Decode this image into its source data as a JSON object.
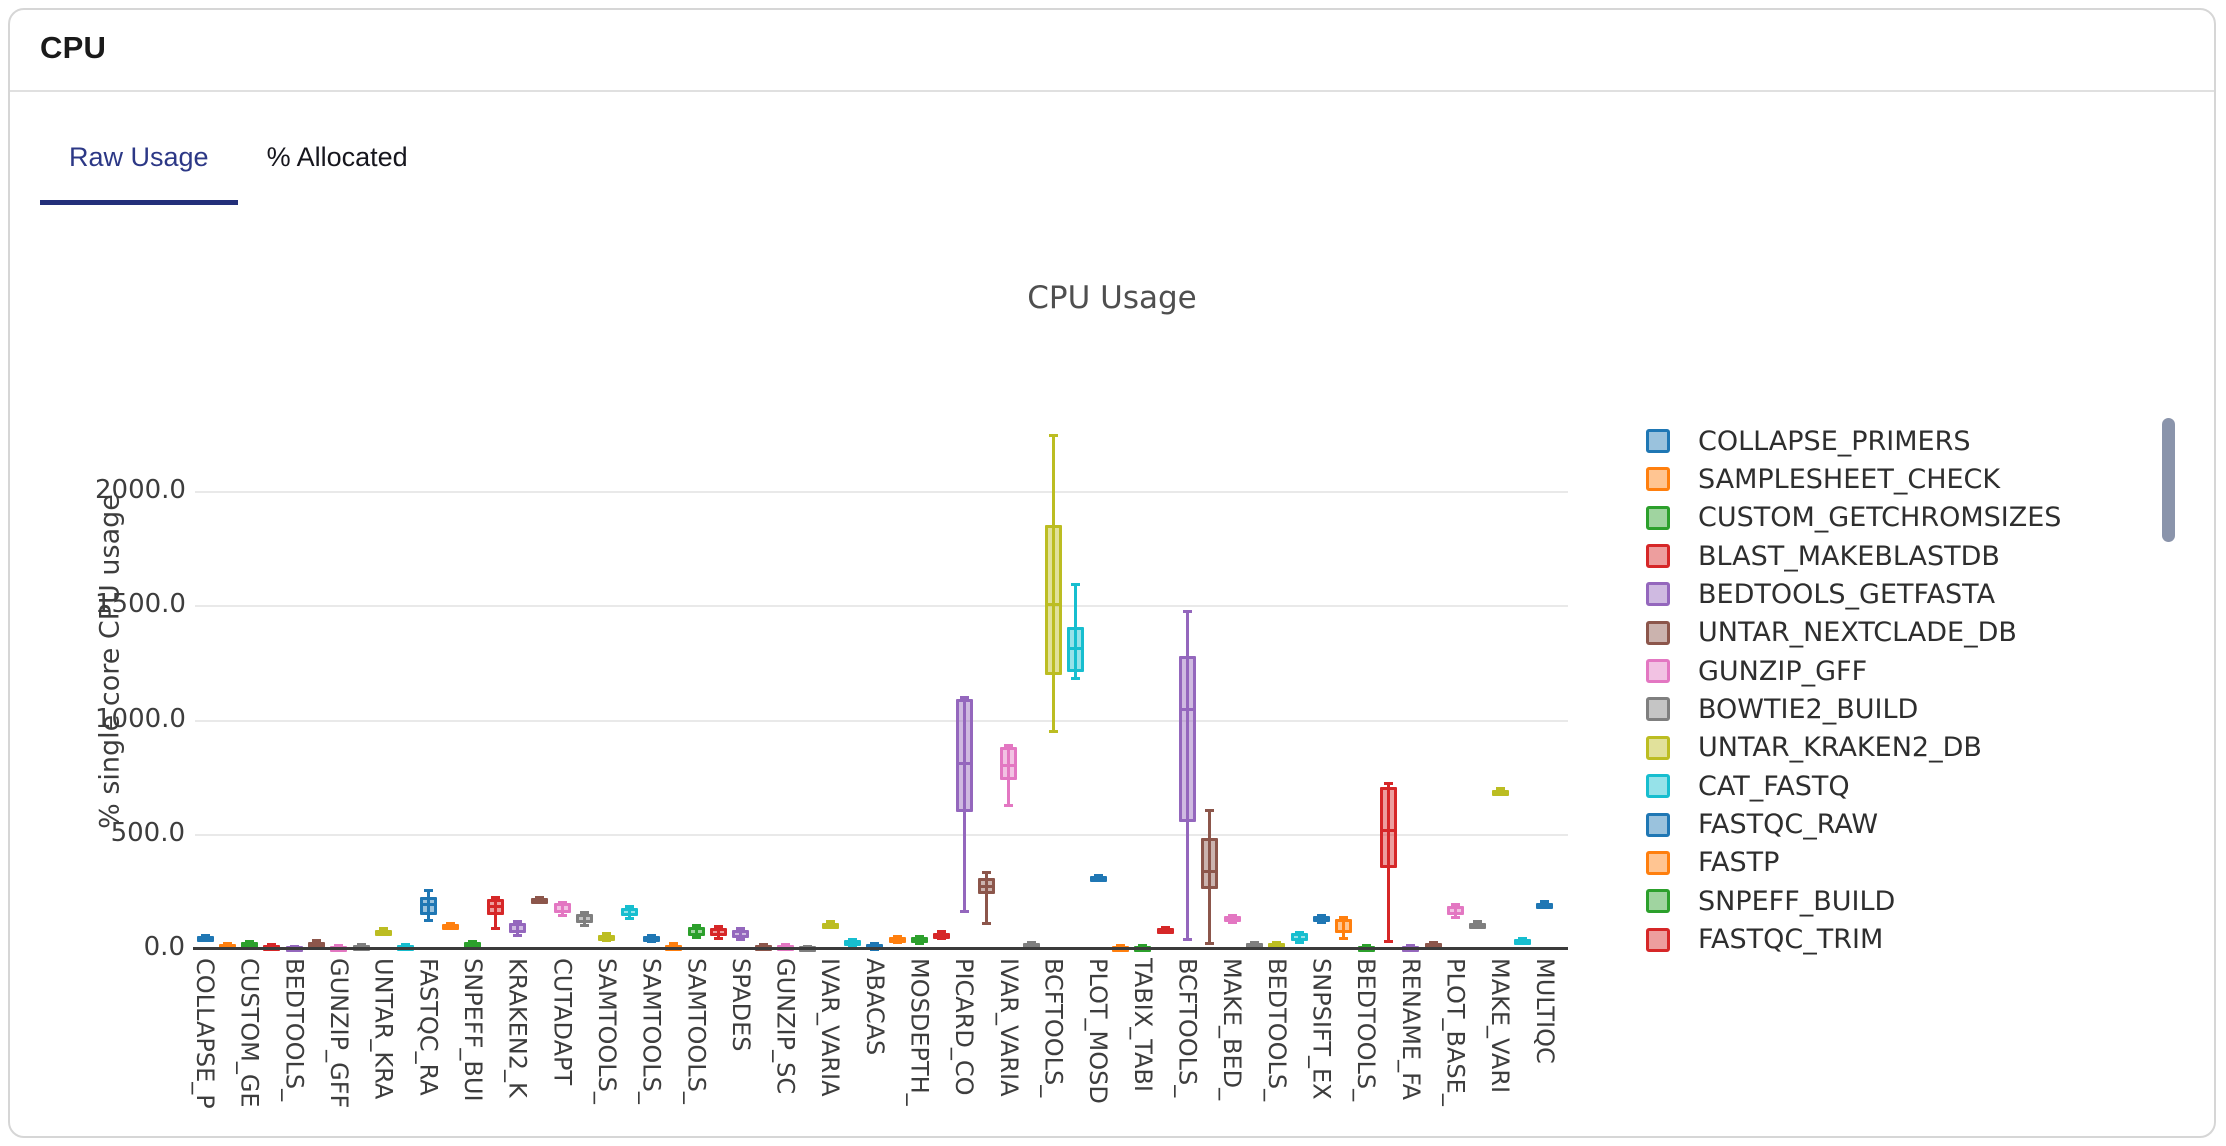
{
  "header": {
    "title": "CPU"
  },
  "tabs": [
    {
      "label": "Raw Usage",
      "active": true
    },
    {
      "label": "% Allocated",
      "active": false
    }
  ],
  "accent": {
    "active_tab_text": "#2c3886",
    "active_tab_underline": "#232f7a",
    "scrollbar_thumb": "#8a94ab"
  },
  "chart_data": {
    "type": "box",
    "title": "CPU Usage",
    "xlabel": "",
    "ylabel": "% single core CPU usage",
    "ylim": [
      0,
      2300
    ],
    "grid": true,
    "legend_position": "right",
    "yticks": [
      0,
      500,
      1000,
      1500,
      2000
    ],
    "ytick_labels": [
      "0.0",
      "500.0",
      "1000.0",
      "1500.0",
      "2000.0"
    ],
    "palette_cycle": [
      "#1f77b4",
      "#ff7f0e",
      "#2ca02c",
      "#d62728",
      "#9467bd",
      "#8c564b",
      "#e377c2",
      "#7f7f7f",
      "#bcbd22",
      "#17becf"
    ],
    "series": [
      {
        "tick_label": "COLLAPSE_P",
        "values": [
          40,
          45,
          51,
          58,
          63
        ]
      },
      {
        "tick_label": "",
        "values": [
          8,
          12,
          18,
          23,
          27
        ]
      },
      {
        "tick_label": "CUSTOM_GE",
        "values": [
          14,
          19,
          25,
          31,
          36
        ]
      },
      {
        "tick_label": "",
        "values": [
          4,
          8,
          12,
          16,
          20
        ]
      },
      {
        "tick_label": "BEDTOOLS_",
        "values": [
          2,
          5,
          8,
          11,
          14
        ]
      },
      {
        "tick_label": "",
        "values": [
          18,
          22,
          27,
          32,
          38
        ]
      },
      {
        "tick_label": "GUNZIP_GFF",
        "values": [
          2,
          5,
          8,
          12,
          16
        ]
      },
      {
        "tick_label": "",
        "values": [
          4,
          8,
          12,
          16,
          20
        ]
      },
      {
        "tick_label": "UNTAR_KRA",
        "values": [
          64,
          70,
          77,
          84,
          91
        ]
      },
      {
        "tick_label": "",
        "values": [
          4,
          8,
          12,
          17,
          21
        ]
      },
      {
        "tick_label": "FASTQC_RA",
        "values": [
          126,
          150,
          193,
          228,
          259
        ]
      },
      {
        "tick_label": "",
        "values": [
          95,
          99,
          105,
          111,
          116
        ]
      },
      {
        "tick_label": "SNPEFF_BUI",
        "values": [
          12,
          17,
          23,
          29,
          34
        ]
      },
      {
        "tick_label": "",
        "values": [
          90,
          148,
          184,
          218,
          226
        ]
      },
      {
        "tick_label": "KRAKEN2_K",
        "values": [
          60,
          70,
          90,
          115,
          124
        ]
      },
      {
        "tick_label": "",
        "values": [
          205,
          210,
          216,
          222,
          228
        ]
      },
      {
        "tick_label": "CUTADAPT",
        "values": [
          150,
          156,
          180,
          200,
          206
        ]
      },
      {
        "tick_label": "",
        "values": [
          106,
          112,
          134,
          154,
          161
        ]
      },
      {
        "tick_label": "SAMTOOLS_",
        "values": [
          38,
          43,
          52,
          62,
          68
        ]
      },
      {
        "tick_label": "",
        "values": [
          136,
          143,
          162,
          181,
          188
        ]
      },
      {
        "tick_label": "SAMTOOLS_",
        "values": [
          33,
          38,
          46,
          55,
          61
        ]
      },
      {
        "tick_label": "",
        "values": [
          2,
          6,
          12,
          19,
          25
        ]
      },
      {
        "tick_label": "SAMTOOLS_",
        "values": [
          51,
          57,
          76,
          97,
          104
        ]
      },
      {
        "tick_label": "",
        "values": [
          50,
          56,
          74,
          93,
          100
        ]
      },
      {
        "tick_label": "SPADES",
        "values": [
          43,
          47,
          64,
          84,
          90
        ]
      },
      {
        "tick_label": "",
        "values": [
          1,
          4,
          10,
          17,
          22
        ]
      },
      {
        "tick_label": "GUNZIP_SC",
        "values": [
          1,
          4,
          10,
          17,
          22
        ]
      },
      {
        "tick_label": "",
        "values": [
          0,
          3,
          7,
          11,
          14
        ]
      },
      {
        "tick_label": "IVAR_VARIA",
        "values": [
          95,
          100,
          108,
          116,
          121
        ]
      },
      {
        "tick_label": "",
        "values": [
          9,
          15,
          26,
          38,
          45
        ]
      },
      {
        "tick_label": "ABACAS",
        "values": [
          1,
          5,
          13,
          21,
          27
        ]
      },
      {
        "tick_label": "",
        "values": [
          29,
          34,
          43,
          52,
          58
        ]
      },
      {
        "tick_label": "MOSDEPTH_",
        "values": [
          26,
          31,
          41,
          52,
          58
        ]
      },
      {
        "tick_label": "",
        "values": [
          46,
          52,
          61,
          71,
          77
        ]
      },
      {
        "tick_label": "PICARD_CO",
        "values": [
          165,
          600,
          812,
          1095,
          1105
        ]
      },
      {
        "tick_label": "",
        "values": [
          115,
          240,
          275,
          310,
          335
        ]
      },
      {
        "tick_label": "IVAR_VARIA",
        "values": [
          630,
          739,
          804,
          884,
          891
        ]
      },
      {
        "tick_label": "",
        "values": [
          5,
          10,
          18,
          26,
          31
        ]
      },
      {
        "tick_label": "BCFTOOLS_",
        "values": [
          955,
          1200,
          1510,
          1855,
          2250
        ]
      },
      {
        "tick_label": "",
        "values": [
          1185,
          1212,
          1316,
          1410,
          1600
        ]
      },
      {
        "tick_label": "PLOT_MOSD",
        "values": [
          300,
          305,
          312,
          320,
          326
        ]
      },
      {
        "tick_label": "",
        "values": [
          1,
          4,
          9,
          14,
          18
        ]
      },
      {
        "tick_label": "TABIX_TABI",
        "values": [
          1,
          4,
          9,
          14,
          18
        ]
      },
      {
        "tick_label": "",
        "values": [
          73,
          78,
          85,
          92,
          98
        ]
      },
      {
        "tick_label": "BCFTOOLS_",
        "values": [
          45,
          556,
          1050,
          1282,
          1480
        ]
      },
      {
        "tick_label": "",
        "values": [
          26,
          264,
          340,
          484,
          608
        ]
      },
      {
        "tick_label": "MAKE_BED_",
        "values": [
          118,
          124,
          134,
          144,
          150
        ]
      },
      {
        "tick_label": "",
        "values": [
          4,
          10,
          17,
          25,
          31
        ]
      },
      {
        "tick_label": "BEDTOOLS_",
        "values": [
          4,
          10,
          17,
          25,
          31
        ]
      },
      {
        "tick_label": "",
        "values": [
          30,
          37,
          52,
          69,
          76
        ]
      },
      {
        "tick_label": "SNPSIFT_EX",
        "values": [
          118,
          124,
          134,
          144,
          150
        ]
      },
      {
        "tick_label": "",
        "values": [
          48,
          72,
          100,
          132,
          139
        ]
      },
      {
        "tick_label": "BEDTOOLS_",
        "values": [
          1,
          4,
          9,
          15,
          19
        ]
      },
      {
        "tick_label": "",
        "values": [
          35,
          356,
          520,
          709,
          726
        ]
      },
      {
        "tick_label": "RENAME_FA",
        "values": [
          3,
          6,
          10,
          14,
          18
        ]
      },
      {
        "tick_label": "",
        "values": [
          8,
          13,
          19,
          26,
          31
        ]
      },
      {
        "tick_label": "PLOT_BASE_",
        "values": [
          140,
          149,
          171,
          190,
          196
        ]
      },
      {
        "tick_label": "",
        "values": [
          95,
          101,
          108,
          115,
          121
        ]
      },
      {
        "tick_label": "MAKE_VARI",
        "values": [
          678,
          684,
          691,
          698,
          704
        ]
      },
      {
        "tick_label": "",
        "values": [
          25,
          30,
          37,
          44,
          50
        ]
      },
      {
        "tick_label": "MULTIQC",
        "values": [
          188,
          192,
          197,
          203,
          208
        ]
      }
    ],
    "legend": [
      {
        "label": "COLLAPSE_PRIMERS",
        "color": "#1f77b4"
      },
      {
        "label": "SAMPLESHEET_CHECK",
        "color": "#ff7f0e"
      },
      {
        "label": "CUSTOM_GETCHROMSIZES",
        "color": "#2ca02c"
      },
      {
        "label": "BLAST_MAKEBLASTDB",
        "color": "#d62728"
      },
      {
        "label": "BEDTOOLS_GETFASTA",
        "color": "#9467bd"
      },
      {
        "label": "UNTAR_NEXTCLADE_DB",
        "color": "#8c564b"
      },
      {
        "label": "GUNZIP_GFF",
        "color": "#e377c2"
      },
      {
        "label": "BOWTIE2_BUILD",
        "color": "#7f7f7f"
      },
      {
        "label": "UNTAR_KRAKEN2_DB",
        "color": "#bcbd22"
      },
      {
        "label": "CAT_FASTQ",
        "color": "#17becf"
      },
      {
        "label": "FASTQC_RAW",
        "color": "#1f77b4"
      },
      {
        "label": "FASTP",
        "color": "#ff7f0e"
      },
      {
        "label": "SNPEFF_BUILD",
        "color": "#2ca02c"
      },
      {
        "label": "FASTQC_TRIM",
        "color": "#d62728"
      }
    ]
  }
}
